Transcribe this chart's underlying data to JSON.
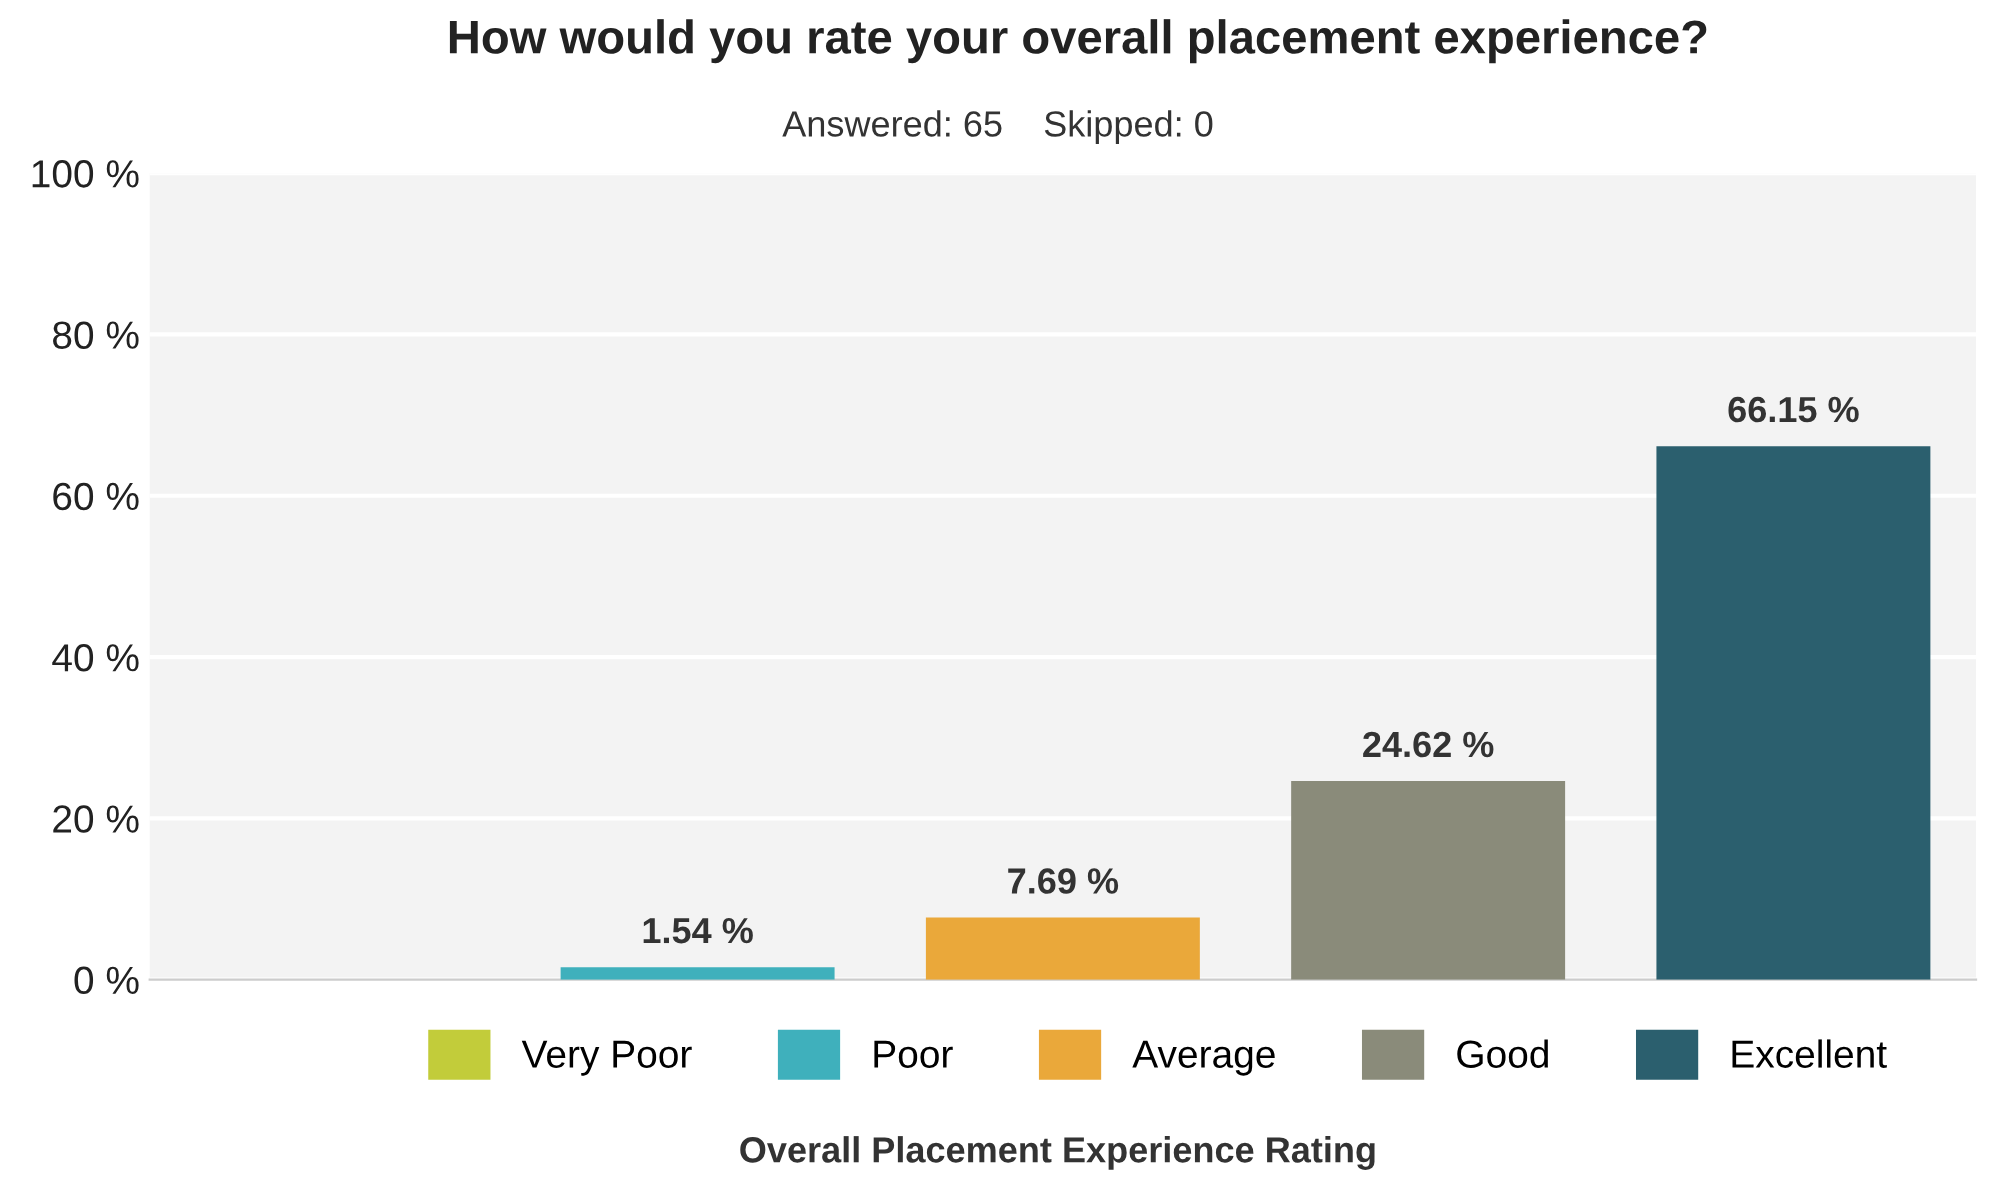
{
  "chart_data": {
    "type": "bar",
    "title": "How would you rate your overall placement experience?",
    "subtitle": "Answered: 65    Skipped: 0",
    "xlabel": "Overall Placement Experience Rating",
    "categories": [
      null,
      null,
      null,
      null,
      null
    ],
    "series": [
      {
        "name": "Very Poor",
        "color": "#c2cc3a",
        "values": [
          0,
          null,
          null,
          null,
          null
        ],
        "value_labels": [
          null,
          null,
          null,
          null,
          null
        ]
      },
      {
        "name": "Poor",
        "color": "#3fb0bc",
        "values": [
          null,
          1.54,
          null,
          null,
          null
        ],
        "value_labels": [
          null,
          "1.54 %",
          null,
          null,
          null
        ]
      },
      {
        "name": "Average",
        "color": "#eaa83a",
        "values": [
          null,
          null,
          7.69,
          null,
          null
        ],
        "value_labels": [
          null,
          null,
          "7.69 %",
          null,
          null
        ]
      },
      {
        "name": "Good",
        "color": "#8a8b7a",
        "values": [
          null,
          null,
          null,
          24.62,
          null
        ],
        "value_labels": [
          null,
          null,
          null,
          "24.62 %",
          null
        ]
      },
      {
        "name": "Excellent",
        "color": "#2b5f6e",
        "values": [
          null,
          null,
          null,
          null,
          66.15
        ],
        "value_labels": [
          null,
          null,
          null,
          null,
          "66.15 %"
        ]
      }
    ],
    "ylim": [
      0,
      100
    ],
    "yticks": [
      {
        "value": 0,
        "label": "0 %"
      },
      {
        "value": 20,
        "label": "20 %"
      },
      {
        "value": 40,
        "label": "40 %"
      },
      {
        "value": 60,
        "label": "60 %"
      },
      {
        "value": 80,
        "label": "80 %"
      },
      {
        "value": 100,
        "label": "100 %"
      }
    ],
    "grid": "y",
    "legend": "bottom",
    "tick_labels": "y"
  }
}
